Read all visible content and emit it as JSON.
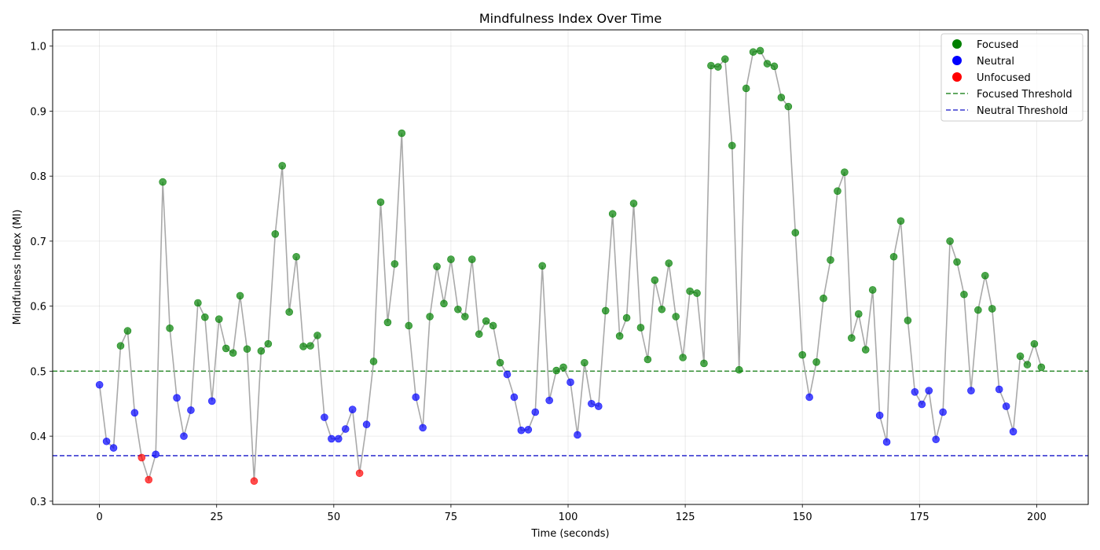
{
  "chart_data": {
    "type": "scatter",
    "title": "Mindfulness Index Over Time",
    "xlabel": "Time (seconds)",
    "ylabel": "Mindfulness Index (MI)",
    "xlim": [
      -10,
      211
    ],
    "ylim": [
      0.295,
      1.025
    ],
    "xticks": [
      0,
      25,
      50,
      75,
      100,
      125,
      150,
      175,
      200
    ],
    "yticks": [
      0.3,
      0.4,
      0.5,
      0.6,
      0.7,
      0.8,
      0.9,
      1.0
    ],
    "xtick_labels": [
      "0",
      "25",
      "50",
      "75",
      "100",
      "125",
      "150",
      "175",
      "200"
    ],
    "ytick_labels": [
      "0.3",
      "0.4",
      "0.5",
      "0.6",
      "0.7",
      "0.8",
      "0.9",
      "1.0"
    ],
    "grid": true,
    "legend_position": "top-right",
    "colors": {
      "focused": "#008000",
      "neutral": "#0000ff",
      "unfocused": "#ff0000",
      "line": "#a9a9a9",
      "focused_threshold": "#2e8b2e",
      "neutral_threshold": "#3a3ad0"
    },
    "thresholds": [
      {
        "name": "Focused Threshold",
        "value": 0.5,
        "color": "#2e8b2e",
        "style": "dashed"
      },
      {
        "name": "Neutral Threshold",
        "value": 0.37,
        "color": "#3a3ad0",
        "style": "dashed"
      }
    ],
    "legend": [
      {
        "label": "Focused",
        "kind": "marker",
        "color": "#008000"
      },
      {
        "label": "Neutral",
        "kind": "marker",
        "color": "#0000ff"
      },
      {
        "label": "Unfocused",
        "kind": "marker",
        "color": "#ff0000"
      },
      {
        "label": "Focused Threshold",
        "kind": "dashed",
        "color": "#2e8b2e"
      },
      {
        "label": "Neutral Threshold",
        "kind": "dashed",
        "color": "#3a3ad0"
      }
    ],
    "time": [
      0.0,
      1.5,
      3.0,
      4.5,
      6.0,
      7.5,
      9.0,
      10.5,
      12.0,
      13.5,
      15.0,
      16.5,
      18.0,
      19.5,
      21.0,
      22.5,
      24.0,
      25.5,
      27.0,
      28.5,
      30.0,
      31.5,
      33.0,
      34.5,
      36.0,
      37.5,
      39.0,
      40.5,
      42.0,
      43.5,
      45.0,
      46.5,
      48.0,
      49.5,
      51.0,
      52.5,
      54.0,
      55.5,
      57.0,
      58.5,
      60.0,
      61.5,
      63.0,
      64.5,
      66.0,
      67.5,
      69.0,
      70.5,
      72.0,
      73.5,
      75.0,
      76.5,
      78.0,
      79.5,
      81.0,
      82.5,
      84.0,
      85.5,
      87.0,
      88.5,
      90.0,
      91.5,
      93.0,
      94.5,
      96.0,
      97.5,
      99.0,
      100.5,
      102.0,
      103.5,
      105.0,
      106.5,
      108.0,
      109.5,
      111.0,
      112.5,
      114.0,
      115.5,
      117.0,
      118.5,
      120.0,
      121.5,
      123.0,
      124.5,
      126.0,
      127.5,
      129.0,
      130.5,
      132.0,
      133.5,
      135.0,
      136.5,
      138.0,
      139.5,
      141.0,
      142.5,
      144.0,
      145.5,
      147.0,
      148.5,
      150.0,
      151.5,
      153.0,
      154.5,
      156.0,
      157.5,
      159.0,
      160.5,
      162.0,
      163.5,
      165.0,
      166.5,
      168.0,
      169.5,
      171.0,
      172.5,
      174.0,
      175.5,
      177.0,
      178.5,
      180.0,
      181.5,
      183.0,
      184.5,
      186.0,
      187.5,
      189.0,
      190.5,
      192.0,
      193.5,
      195.0,
      196.5,
      198.0,
      199.5,
      201.0
    ],
    "mindfulness_index": [
      0.479,
      0.392,
      0.382,
      0.539,
      0.562,
      0.436,
      0.367,
      0.333,
      0.372,
      0.791,
      0.566,
      0.459,
      0.4,
      0.44,
      0.605,
      0.583,
      0.454,
      0.58,
      0.535,
      0.528,
      0.616,
      0.534,
      0.331,
      0.531,
      0.542,
      0.711,
      0.816,
      0.591,
      0.676,
      0.538,
      0.539,
      0.555,
      0.429,
      0.396,
      0.396,
      0.411,
      0.441,
      0.343,
      0.418,
      0.515,
      0.76,
      0.575,
      0.665,
      0.866,
      0.57,
      0.46,
      0.413,
      0.584,
      0.661,
      0.604,
      0.672,
      0.595,
      0.584,
      0.672,
      0.557,
      0.577,
      0.57,
      0.513,
      0.495,
      0.46,
      0.409,
      0.41,
      0.437,
      0.662,
      0.455,
      0.501,
      0.506,
      0.483,
      0.402,
      0.513,
      0.45,
      0.446,
      0.593,
      0.742,
      0.554,
      0.582,
      0.758,
      0.567,
      0.518,
      0.64,
      0.595,
      0.666,
      0.584,
      0.521,
      0.623,
      0.62,
      0.512,
      0.97,
      0.968,
      0.98,
      0.847,
      0.502,
      0.935,
      0.991,
      0.993,
      0.973,
      0.969,
      0.921,
      0.907,
      0.713,
      0.525,
      0.46,
      0.514,
      0.612,
      0.671,
      0.777,
      0.806,
      0.551,
      0.588,
      0.533,
      0.625,
      0.432,
      0.391,
      0.676,
      0.731,
      0.578,
      0.468,
      0.449,
      0.47,
      0.395,
      0.437,
      0.7,
      0.668,
      0.618,
      0.47,
      0.594,
      0.647,
      0.596,
      0.472,
      0.446,
      0.407,
      0.523,
      0.51,
      0.542,
      0.506
    ]
  }
}
